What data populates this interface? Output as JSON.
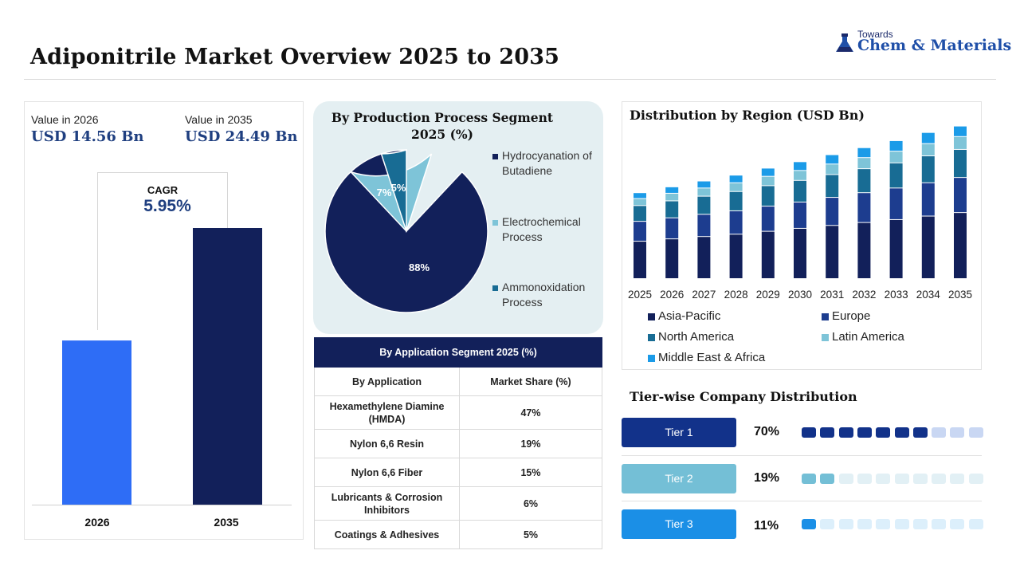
{
  "header": {
    "title": "Adiponitrile Market Overview 2025 to 2035",
    "logo_top": "Towards",
    "logo_main": "Chem & Materials"
  },
  "summary": {
    "value_2026_label": "Value in 2026",
    "value_2026": "USD 14.56 Bn",
    "value_2035_label": "Value in 2035",
    "value_2035": "USD 24.49 Bn",
    "cagr_label": "CAGR",
    "cagr_value": "5.95%"
  },
  "pie": {
    "title": "By Production Process Segment 2025 (%)",
    "legend": [
      "Hydrocyanation of Butadiene",
      "Electrochemical Process",
      "Ammonoxidation Process"
    ]
  },
  "table": {
    "title": "By Application Segment 2025 (%)",
    "headers": [
      "By Application",
      "Market Share (%)"
    ],
    "rows": [
      [
        "Hexamethylene Diamine (HMDA)",
        "47%"
      ],
      [
        "Nylon 6,6 Resin",
        "19%"
      ],
      [
        "Nylon 6,6 Fiber",
        "15%"
      ],
      [
        "Lubricants & Corrosion Inhibitors",
        "6%"
      ],
      [
        "Coatings & Adhesives",
        "5%"
      ]
    ]
  },
  "region": {
    "title": "Distribution by Region (USD Bn)"
  },
  "tiers": {
    "title": "Tier-wise Company Distribution",
    "items": [
      {
        "label": "Tier 1",
        "pct": "70%",
        "value": 70,
        "color": "#12328a"
      },
      {
        "label": "Tier 2",
        "pct": "19%",
        "value": 19,
        "color": "#74bfd6"
      },
      {
        "label": "Tier 3",
        "pct": "11%",
        "value": 11,
        "color": "#1b8fe6"
      }
    ]
  },
  "colors": {
    "navy": "#12205a",
    "blue": "#2e6df6",
    "apac": "#12205a",
    "europe": "#1d3d8f",
    "north_america": "#186c94",
    "latin_america": "#7ec4d8",
    "mea": "#1b9be8"
  },
  "chart_data": [
    {
      "type": "bar",
      "categories": [
        "2026",
        "2035"
      ],
      "values": [
        14.56,
        24.49
      ],
      "ylim": [
        0,
        25
      ],
      "colors": [
        "#2e6df6",
        "#12205a"
      ]
    },
    {
      "type": "pie",
      "labels": [
        "Hydrocyanation of Butadiene",
        "Electrochemical Process",
        "Ammonoxidation Process"
      ],
      "values": [
        88,
        7,
        5
      ],
      "data_labels": [
        "88%",
        "7%",
        "5%"
      ],
      "colors": [
        "#12205a",
        "#7ec4d8",
        "#186c94"
      ]
    },
    {
      "type": "bar",
      "stacked": true,
      "categories": [
        "2025",
        "2026",
        "2027",
        "2028",
        "2029",
        "2030",
        "2031",
        "2032",
        "2033",
        "2034",
        "2035"
      ],
      "series": [
        {
          "name": "Asia-Pacific",
          "values": [
            6.4,
            6.8,
            7.2,
            7.6,
            8.1,
            8.6,
            9.1,
            9.6,
            10.1,
            10.7,
            11.3
          ]
        },
        {
          "name": "Europe",
          "values": [
            3.4,
            3.6,
            3.8,
            4.0,
            4.3,
            4.5,
            4.8,
            5.1,
            5.4,
            5.7,
            6.0
          ]
        },
        {
          "name": "North America",
          "values": [
            2.7,
            2.9,
            3.1,
            3.3,
            3.5,
            3.7,
            3.9,
            4.1,
            4.3,
            4.6,
            4.8
          ]
        },
        {
          "name": "Latin America",
          "values": [
            1.2,
            1.3,
            1.4,
            1.5,
            1.6,
            1.7,
            1.8,
            1.9,
            2.0,
            2.1,
            2.2
          ]
        },
        {
          "name": "Middle East & Africa",
          "values": [
            1.0,
            1.1,
            1.2,
            1.3,
            1.4,
            1.5,
            1.6,
            1.7,
            1.8,
            1.9,
            1.8
          ]
        }
      ],
      "ylim": [
        0,
        27
      ],
      "legend_position": "bottom"
    }
  ]
}
